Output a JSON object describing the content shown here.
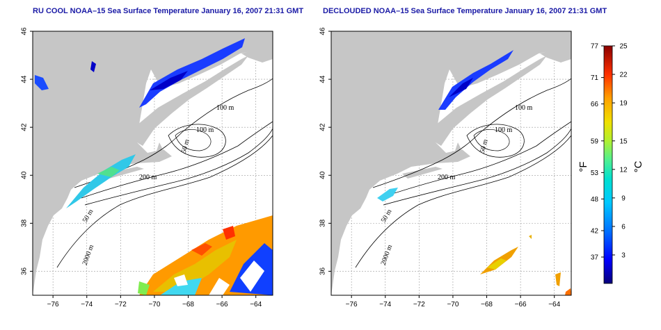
{
  "titles": {
    "left": "RU COOL NOAA–15 Sea Surface Temperature January 16, 2007 21:31 GMT",
    "right": "DECLOUDED NOAA–15 Sea Surface Temperature January 16, 2007 21:31 GMT"
  },
  "axes": {
    "lon_ticks": [
      "−76",
      "−74",
      "−72",
      "−70",
      "−68",
      "−66",
      "−64"
    ],
    "lon_values": [
      -76,
      -74,
      -72,
      -70,
      -68,
      -66,
      -64
    ],
    "lat_ticks": [
      "36",
      "38",
      "40",
      "42",
      "44",
      "46"
    ],
    "lat_values": [
      36,
      38,
      40,
      42,
      44,
      46
    ],
    "lon_range": [
      -77.2,
      -63
    ],
    "lat_range": [
      35,
      46
    ]
  },
  "contour_labels": {
    "left": [
      "100 m",
      "100 m",
      "50 m",
      "200 m",
      "50 m",
      "2000 m"
    ],
    "right": [
      "100 m",
      "100 m",
      "50 m",
      "200 m",
      "50 m",
      "2000 m"
    ]
  },
  "colorbar": {
    "fahrenheit_ticks": [
      "77",
      "71",
      "66",
      "59",
      "53",
      "48",
      "42",
      "37"
    ],
    "fahrenheit_values": [
      77,
      71,
      66,
      59,
      53,
      48,
      42,
      37
    ],
    "celsius_ticks": [
      "25",
      "22",
      "19",
      "15",
      "12",
      "9",
      "6",
      "3"
    ],
    "celsius_values": [
      25,
      22,
      19,
      15,
      12,
      9,
      6,
      3
    ],
    "range_celsius": [
      0,
      25
    ],
    "f_label": "°F",
    "c_label": "°C",
    "colors": [
      "#08007a",
      "#0000ff",
      "#0060ff",
      "#00b0ff",
      "#00e0e0",
      "#40f0a0",
      "#a0f040",
      "#e0e000",
      "#ffb000",
      "#ff6000",
      "#e00000",
      "#8a0000"
    ]
  },
  "colors": {
    "land": "#c6c6c6",
    "ocean": "#ffffff",
    "title": "#1a1aa6",
    "grid": "#9a9a9a"
  }
}
